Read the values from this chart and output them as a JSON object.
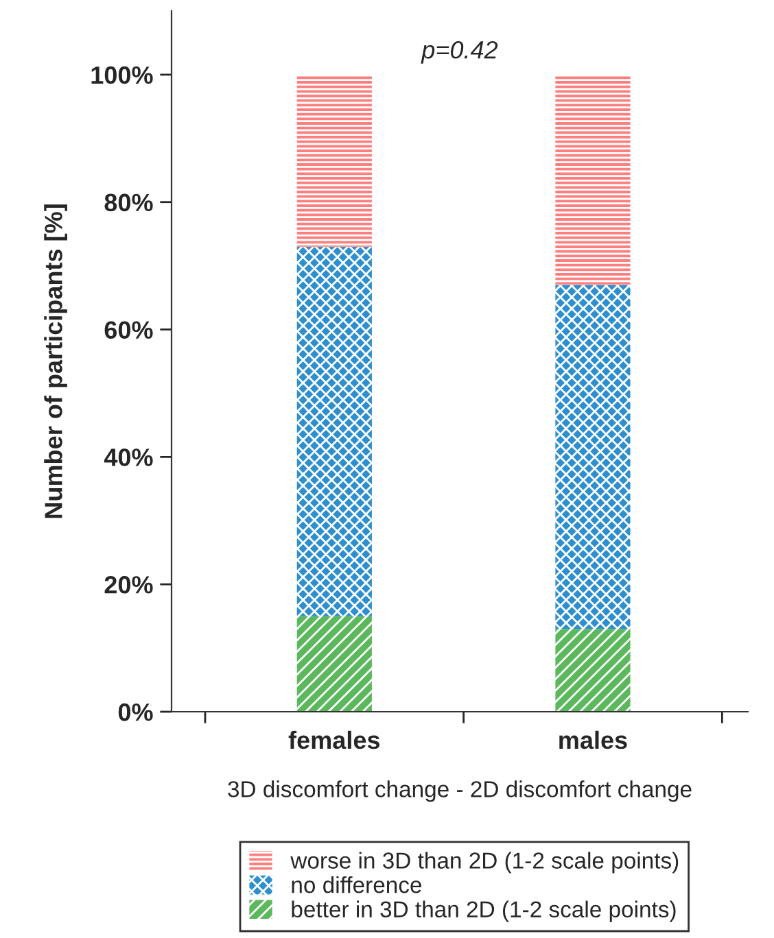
{
  "chart_data": {
    "type": "bar",
    "stacked": true,
    "xlabel": "3D discomfort change - 2D discomfort change",
    "ylabel": "Number of participants [%]",
    "categories": [
      "females",
      "males"
    ],
    "series": [
      {
        "name": "better in 3D than 2D (1-2 scale points)",
        "color": "#5cb85c",
        "values": [
          15,
          13
        ]
      },
      {
        "name": "no difference",
        "color": "#2e8fcf",
        "values": [
          58,
          54
        ]
      },
      {
        "name": "worse in 3D than 2D (1-2 scale points)",
        "color": "#ff7f7f",
        "values": [
          27,
          33
        ]
      }
    ],
    "ylim": [
      0,
      110
    ],
    "yticks": [
      {
        "value": 0,
        "label": "0%"
      },
      {
        "value": 20,
        "label": "20%"
      },
      {
        "value": 40,
        "label": "40%"
      },
      {
        "value": 60,
        "label": "60%"
      },
      {
        "value": 80,
        "label": "80%"
      },
      {
        "value": 100,
        "label": "100%"
      }
    ],
    "annotations": [
      "p=0.42"
    ],
    "legend": "bottom",
    "grid": false
  }
}
